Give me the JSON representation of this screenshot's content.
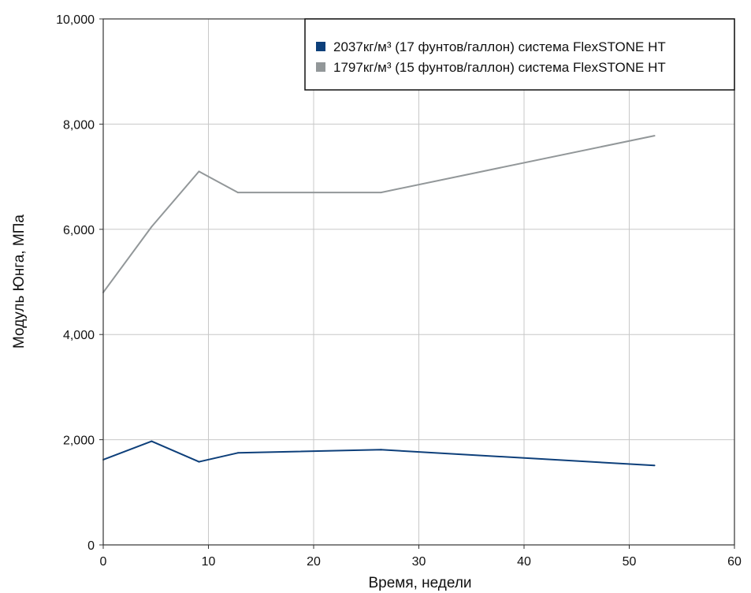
{
  "chart_data": {
    "type": "line",
    "xlabel": "Время, недели",
    "ylabel": "Модуль Юнга, МПа",
    "xlim": [
      0,
      60
    ],
    "ylim": [
      0,
      10000
    ],
    "x_ticks": [
      "0",
      "10",
      "20",
      "30",
      "40",
      "50",
      "60"
    ],
    "y_ticks": [
      "0",
      "2,000",
      "4,000",
      "6,000",
      "8,000",
      "10,000"
    ],
    "grid": true,
    "legend_position": "top-right",
    "series": [
      {
        "name": "2037кг/м³ (17 фунтов/галлон) система FlexSTONE HT",
        "color": "#0d3f7a",
        "points": [
          [
            0,
            1620
          ],
          [
            4.6,
            1970
          ],
          [
            9.1,
            1580
          ],
          [
            12.8,
            1750
          ],
          [
            26.4,
            1810
          ],
          [
            52.4,
            1510
          ]
        ]
      },
      {
        "name": "1797кг/м³ (15 фунтов/галлон) система FlexSTONE HT",
        "color": "#929799",
        "points": [
          [
            0,
            4800
          ],
          [
            4.6,
            6050
          ],
          [
            9.1,
            7100
          ],
          [
            12.8,
            6700
          ],
          [
            26.4,
            6700
          ],
          [
            52.4,
            7780
          ]
        ]
      }
    ]
  }
}
